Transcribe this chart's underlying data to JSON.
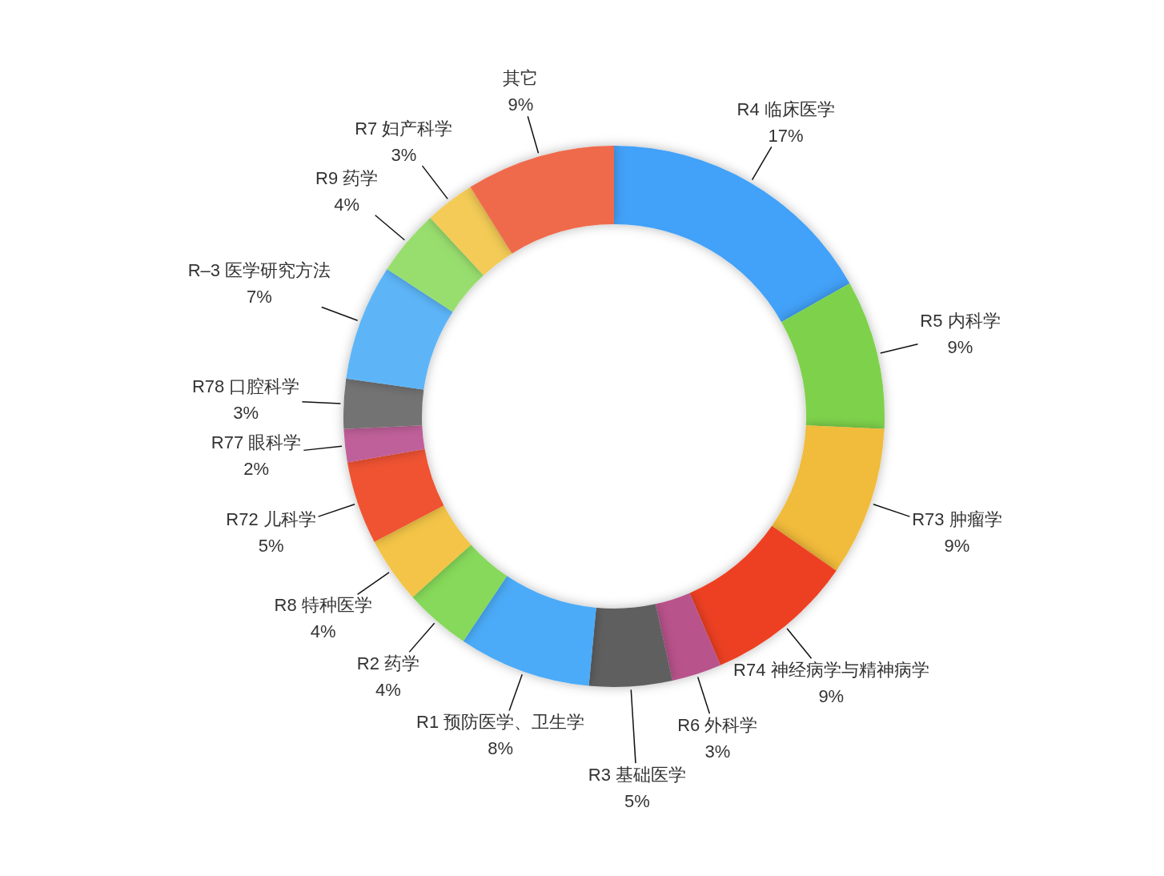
{
  "chart_data": {
    "type": "donut",
    "categories": [
      "R4 临床医学",
      "R5 内科学",
      "R73 肿瘤学",
      "R74 神经病学与精神病学",
      "R6 外科学",
      "R3 基础医学",
      "R1 预防医学、卫生学",
      "R2 药学",
      "R8 特种医学",
      "R72 儿科学",
      "R77 眼科学",
      "R78 口腔科学",
      "R–3 医学研究方法",
      "R9 药学",
      "R7 妇产科学",
      "其它"
    ],
    "values": [
      17,
      9,
      9,
      9,
      3,
      5,
      8,
      4,
      4,
      5,
      2,
      3,
      7,
      4,
      3,
      9
    ],
    "value_labels": [
      "17%",
      "9%",
      "9%",
      "9%",
      "3%",
      "5%",
      "8%",
      "4%",
      "4%",
      "5%",
      "2%",
      "3%",
      "7%",
      "4%",
      "3%",
      "9%"
    ],
    "colors": [
      "#42a1f8",
      "#7ed24b",
      "#f1bb3a",
      "#ed4124",
      "#b8528b",
      "#5f5f5f",
      "#4cabf8",
      "#86d95a",
      "#f3c446",
      "#ef5333",
      "#c0609a",
      "#737373",
      "#5db5f8",
      "#98de6e",
      "#f3cb57",
      "#ef6a4c"
    ]
  }
}
